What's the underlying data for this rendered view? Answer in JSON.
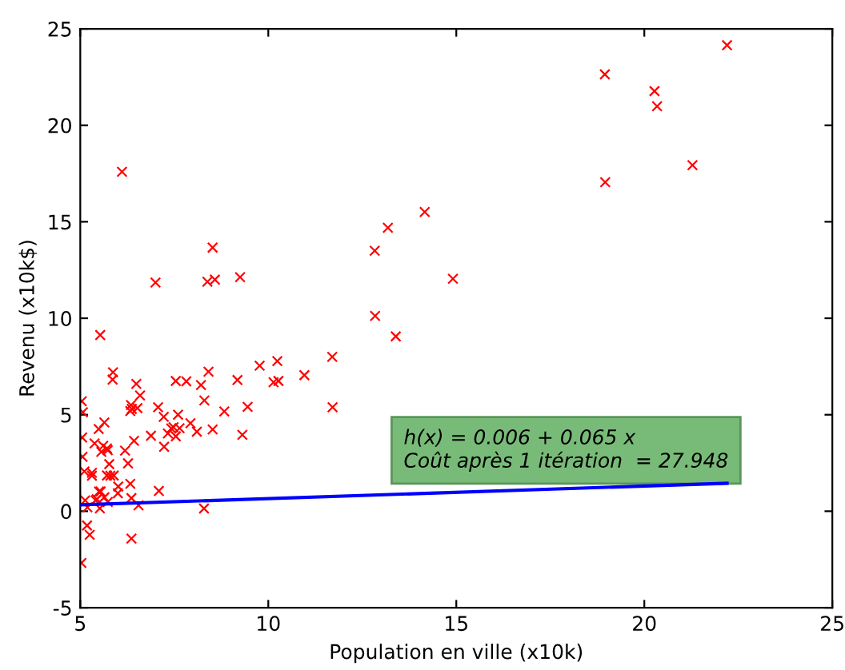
{
  "chart_data": {
    "type": "scatter",
    "xlabel": "Population en ville (x10k)",
    "ylabel": "Revenu (x10k$)",
    "xlim": [
      5,
      25
    ],
    "xticks": [
      5,
      10,
      15,
      20,
      25
    ],
    "ylim": [
      -5,
      25
    ],
    "yticks": [
      -5,
      0,
      5,
      10,
      15,
      20,
      25
    ],
    "grid": false,
    "legend": false,
    "annotations": [
      "h(x) = 0.006 + 0.065 x\nCoût après 1 itération  = 27.948"
    ],
    "series": [
      {
        "color": "#ff0000",
        "marker": "cross",
        "x": [
          6.11,
          5.53,
          8.52,
          7.0,
          5.86,
          8.38,
          7.48,
          8.58,
          6.49,
          5.05,
          5.71,
          14.16,
          5.73,
          8.41,
          5.64,
          5.38,
          6.37,
          5.13,
          6.43,
          7.07,
          6.19,
          20.27,
          5.49,
          6.33,
          5.56,
          18.95,
          12.83,
          10.96,
          13.18,
          22.2,
          5.25,
          6.59,
          9.25,
          5.89,
          8.21,
          7.93,
          8.1,
          5.61,
          12.84,
          6.35,
          5.41,
          6.88,
          11.71,
          5.77,
          7.82,
          7.09,
          5.07,
          5.8,
          11.7,
          5.54,
          7.54,
          5.31,
          7.42,
          7.6,
          6.33,
          6.36,
          6.27,
          5.64,
          9.31,
          9.45,
          8.83,
          5.18,
          21.28,
          14.91,
          18.96,
          7.22,
          8.3,
          10.24,
          5.5,
          20.34,
          10.14,
          7.33,
          6.01,
          7.23,
          5.03,
          6.55,
          7.54,
          5.04,
          10.27,
          5.11,
          5.73,
          5.19,
          6.36,
          9.77,
          6.52,
          8.52,
          9.18,
          6.0,
          5.52,
          5.06,
          5.71,
          7.64,
          5.87,
          5.31,
          8.29,
          13.39,
          5.44
        ],
        "values": [
          17.59,
          9.13,
          13.66,
          11.85,
          6.82,
          11.89,
          4.35,
          12.0,
          6.6,
          3.82,
          3.25,
          15.51,
          3.16,
          7.23,
          0.72,
          3.51,
          5.3,
          0.56,
          3.65,
          5.39,
          3.14,
          21.77,
          4.26,
          5.19,
          3.08,
          22.64,
          13.5,
          7.05,
          14.69,
          24.15,
          -1.22,
          6.0,
          12.13,
          1.85,
          6.54,
          4.56,
          4.12,
          3.39,
          10.12,
          5.5,
          0.56,
          3.91,
          5.39,
          2.44,
          6.73,
          1.05,
          5.13,
          1.84,
          8.0,
          1.02,
          6.75,
          1.84,
          4.29,
          5.0,
          1.42,
          -1.42,
          2.48,
          4.6,
          3.96,
          5.41,
          5.17,
          -0.74,
          17.93,
          12.05,
          17.05,
          4.89,
          5.74,
          7.78,
          1.02,
          20.99,
          6.68,
          4.03,
          1.28,
          3.34,
          -2.68,
          0.3,
          3.88,
          5.7,
          6.75,
          2.06,
          0.48,
          0.2,
          0.68,
          7.54,
          5.34,
          4.24,
          6.8,
          0.93,
          0.15,
          2.82,
          1.85,
          4.3,
          7.2,
          1.99,
          0.14,
          9.06,
          0.62
        ]
      },
      {
        "type": "line",
        "color": "#0000ff",
        "x": [
          5.03,
          22.2
        ],
        "values": [
          0.33,
          1.45
        ]
      }
    ]
  }
}
